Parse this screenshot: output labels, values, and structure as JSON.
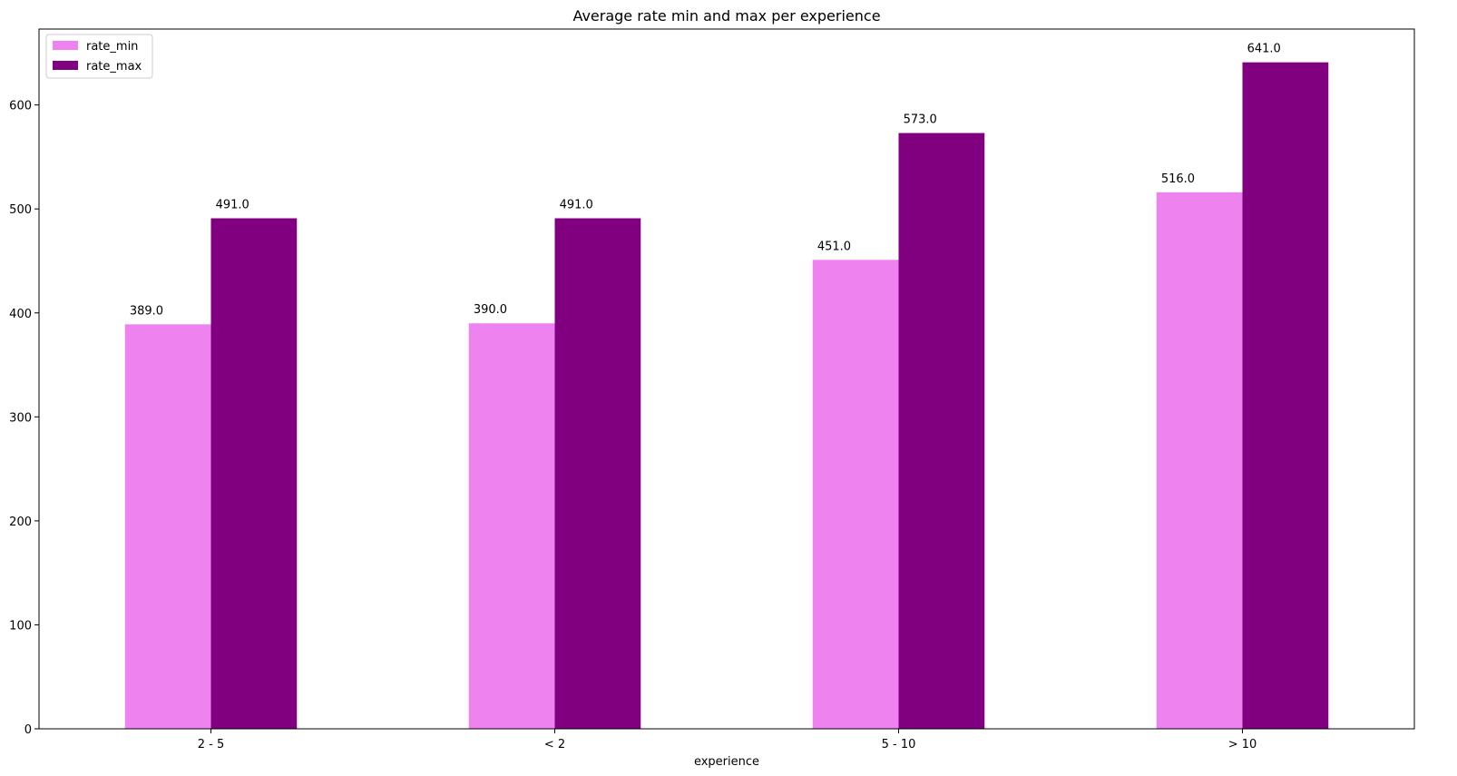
{
  "chart_data": {
    "type": "bar",
    "title": "Average rate min and max per experience",
    "xlabel": "experience",
    "ylabel": "",
    "categories": [
      "2 - 5",
      "< 2",
      "5 - 10",
      "> 10"
    ],
    "series": [
      {
        "name": "rate_min",
        "color": "#ee82ee",
        "values": [
          389.0,
          390.0,
          451.0,
          516.0
        ],
        "labels": [
          "389.0",
          "390.0",
          "451.0",
          "516.0"
        ]
      },
      {
        "name": "rate_max",
        "color": "#800080",
        "values": [
          491.0,
          491.0,
          573.0,
          641.0
        ],
        "labels": [
          "491.0",
          "491.0",
          "573.0",
          "641.0"
        ]
      }
    ],
    "ylim": [
      0,
      673
    ],
    "yticks": [
      0,
      100,
      200,
      300,
      400,
      500,
      600
    ],
    "grid": false,
    "legend": "top-left"
  }
}
